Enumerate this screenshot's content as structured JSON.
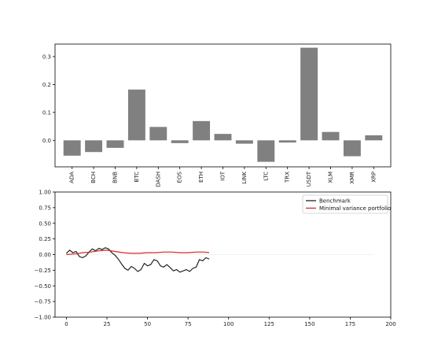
{
  "chart_data": [
    {
      "type": "bar",
      "categories": [
        "ADA",
        "BCH",
        "BNB",
        "BTC",
        "DASH",
        "EOS",
        "ETH",
        "IOT",
        "LINK",
        "LTC",
        "TRX",
        "USDT",
        "XLM",
        "XMR",
        "XRP"
      ],
      "values": [
        -0.055,
        -0.042,
        -0.027,
        0.182,
        0.048,
        -0.01,
        0.069,
        0.023,
        -0.012,
        -0.077,
        -0.008,
        0.332,
        0.03,
        -0.057,
        0.018
      ],
      "ylim": [
        -0.095,
        0.345
      ],
      "yticks": [
        0.0,
        0.1,
        0.2,
        0.3
      ],
      "ytick_labels": [
        "0.0",
        "0.1",
        "0.2",
        "0.3"
      ],
      "bar_color": "#808080",
      "grid": false
    },
    {
      "type": "line",
      "xlim": [
        -7,
        200
      ],
      "ylim": [
        -1.0,
        1.0
      ],
      "xticks": [
        0,
        25,
        50,
        75,
        100,
        125,
        150,
        175,
        200
      ],
      "yticks": [
        -1.0,
        -0.75,
        -0.5,
        -0.25,
        0.0,
        0.25,
        0.5,
        0.75,
        1.0
      ],
      "ytick_labels": [
        "−1.00",
        "−0.75",
        "−0.50",
        "−0.25",
        "0.00",
        "0.25",
        "0.50",
        "0.75",
        "1.00"
      ],
      "legend_position": "top-right",
      "grid": false,
      "series": [
        {
          "name": "Benchmark",
          "color": "#222222",
          "x": [
            0,
            2,
            4,
            6,
            8,
            10,
            12,
            14,
            16,
            18,
            20,
            22,
            24,
            26,
            28,
            30,
            32,
            34,
            36,
            38,
            40,
            42,
            44,
            46,
            48,
            50,
            52,
            54,
            56,
            58,
            60,
            62,
            64,
            66,
            68,
            70,
            72,
            74,
            76,
            78,
            80,
            82,
            84,
            86,
            88
          ],
          "y": [
            0.02,
            0.07,
            0.03,
            0.05,
            -0.03,
            -0.05,
            -0.02,
            0.04,
            0.09,
            0.06,
            0.1,
            0.08,
            0.11,
            0.09,
            0.03,
            -0.01,
            -0.07,
            -0.15,
            -0.22,
            -0.25,
            -0.19,
            -0.22,
            -0.27,
            -0.24,
            -0.14,
            -0.18,
            -0.16,
            -0.08,
            -0.1,
            -0.18,
            -0.2,
            -0.16,
            -0.21,
            -0.26,
            -0.24,
            -0.28,
            -0.26,
            -0.24,
            -0.27,
            -0.22,
            -0.2,
            -0.08,
            -0.1,
            -0.05,
            -0.07
          ]
        },
        {
          "name": "Minimal variance portfolio",
          "color": "#d62728",
          "x": [
            0,
            5,
            10,
            15,
            20,
            25,
            30,
            35,
            40,
            45,
            50,
            55,
            60,
            65,
            70,
            75,
            80,
            85,
            88
          ],
          "y": [
            0.0,
            0.01,
            0.03,
            0.04,
            0.06,
            0.07,
            0.05,
            0.03,
            0.02,
            0.02,
            0.03,
            0.03,
            0.04,
            0.04,
            0.03,
            0.03,
            0.04,
            0.04,
            0.03
          ]
        }
      ]
    }
  ]
}
